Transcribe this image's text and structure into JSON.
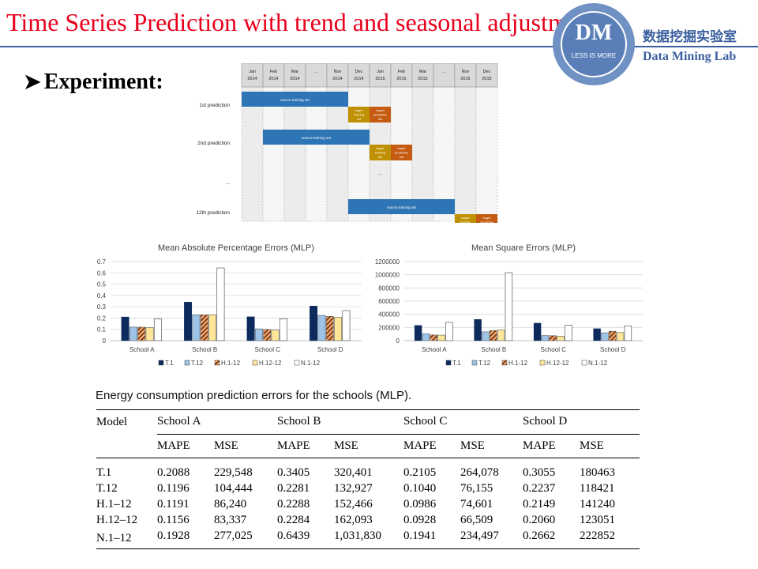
{
  "slide": {
    "title": "Time Series Prediction with trend and seasonal adjustment",
    "bullet": "Experiment:",
    "lab_cn": "数据挖掘实验室",
    "lab_en": "Data Mining Lab",
    "logo_text": "DM",
    "logo_sub": "LESS IS MORE",
    "colors": {
      "title": "#e8001c",
      "accent": "#3b5fa0"
    }
  },
  "timeline": {
    "months": [
      {
        "m": "Jan",
        "y": "2014"
      },
      {
        "m": "Feb",
        "y": "2014"
      },
      {
        "m": "Mar",
        "y": "2014"
      },
      {
        "m": "...",
        "y": ""
      },
      {
        "m": "Nov",
        "y": "2014"
      },
      {
        "m": "Dec",
        "y": "2014"
      },
      {
        "m": "Jan",
        "y": "2015"
      },
      {
        "m": "Feb",
        "y": "2015"
      },
      {
        "m": "Mar",
        "y": "2015"
      },
      {
        "m": "...",
        "y": ""
      },
      {
        "m": "Nov",
        "y": "2015"
      },
      {
        "m": "Dec",
        "y": "2015"
      }
    ],
    "rows": [
      {
        "label": "1st prediction",
        "train_start": 0,
        "train_end": 5,
        "target_training": 5,
        "target_predictive": 6
      },
      {
        "label": "2nd prediction",
        "train_start": 1,
        "train_end": 6,
        "target_training": 6,
        "target_predictive": 7
      },
      {
        "label": "...",
        "ellipsis": true
      },
      {
        "label": "12th prediction",
        "train_start": 5,
        "train_end": 10,
        "target_training": 10,
        "target_predictive": 11
      }
    ],
    "train_label": "source training set",
    "target_training_label": [
      "target",
      "training",
      "set"
    ],
    "target_predictive_label": [
      "target",
      "predictive",
      "set"
    ],
    "colors": {
      "train": "#2e75b6",
      "target_training": "#bf9000",
      "target_predictive": "#c55a11"
    }
  },
  "chart_data": [
    {
      "type": "bar",
      "title": "Mean Absolute Percentage Errors (MLP)",
      "categories": [
        "School A",
        "School B",
        "School C",
        "School D"
      ],
      "series": [
        {
          "name": "T.1",
          "values": [
            0.2088,
            0.3405,
            0.2105,
            0.3055
          ]
        },
        {
          "name": "T.12",
          "values": [
            0.1196,
            0.2281,
            0.104,
            0.2237
          ]
        },
        {
          "name": "H.1-12",
          "values": [
            0.1191,
            0.2288,
            0.0986,
            0.2149
          ]
        },
        {
          "name": "H.12-12",
          "values": [
            0.1156,
            0.2284,
            0.0928,
            0.206
          ]
        },
        {
          "name": "N.1-12",
          "values": [
            0.1928,
            0.6439,
            0.1941,
            0.2662
          ]
        }
      ],
      "ylim": [
        0,
        0.7
      ],
      "yticks": [
        "0",
        "0.1",
        "0.2",
        "0.3",
        "0.4",
        "0.5",
        "0.6",
        "0.7"
      ],
      "ytick_values": [
        0,
        0.1,
        0.2,
        0.3,
        0.4,
        0.5,
        0.6,
        0.7
      ],
      "legend": "bottom"
    },
    {
      "type": "bar",
      "title": "Mean Square Errors (MLP)",
      "categories": [
        "School A",
        "School B",
        "School C",
        "School D"
      ],
      "series": [
        {
          "name": "T.1",
          "values": [
            229548,
            320401,
            264078,
            180463
          ]
        },
        {
          "name": "T.12",
          "values": [
            104444,
            132927,
            76155,
            118421
          ]
        },
        {
          "name": "H.1-12",
          "values": [
            86240,
            152466,
            74601,
            141240
          ]
        },
        {
          "name": "H.12-12",
          "values": [
            83337,
            162093,
            66509,
            123051
          ]
        },
        {
          "name": "N.1-12",
          "values": [
            277025,
            1031830,
            234497,
            222852
          ]
        }
      ],
      "ylim": [
        0,
        1200000
      ],
      "yticks": [
        "0",
        "200000",
        "400000",
        "600000",
        "800000",
        "1000000",
        "1200000"
      ],
      "ytick_values": [
        0,
        200000,
        400000,
        600000,
        800000,
        1000000,
        1200000
      ],
      "legend": "bottom"
    }
  ],
  "series_styles": [
    {
      "fill": "#0d2a5c",
      "pattern": "none"
    },
    {
      "fill": "#9dc3e6",
      "pattern": "none"
    },
    {
      "fill": "#c55a11",
      "pattern": "diag"
    },
    {
      "fill": "#ffe699",
      "pattern": "none"
    },
    {
      "fill": "#ffffff",
      "pattern": "none"
    }
  ],
  "table": {
    "caption": "Energy consumption prediction errors for the schools (MLP).",
    "model_header": "Model",
    "schools": [
      "School A",
      "School B",
      "School C",
      "School D"
    ],
    "sub_headers": [
      "MAPE",
      "MSE"
    ],
    "rows": [
      {
        "model": "T.1",
        "vals": [
          "0.2088",
          "229,548",
          "0.3405",
          "320,401",
          "0.2105",
          "264,078",
          "0.3055",
          "180463"
        ]
      },
      {
        "model": "T.12",
        "vals": [
          "0.1196",
          "104,444",
          "0.2281",
          "132,927",
          "0.1040",
          "76,155",
          "0.2237",
          "118421"
        ]
      },
      {
        "model": "H.1–12",
        "vals": [
          "0.1191",
          "86,240",
          "0.2288",
          "152,466",
          "0.0986",
          "74,601",
          "0.2149",
          "141240"
        ]
      },
      {
        "model": "H.12–12",
        "vals": [
          "0.1156",
          "83,337",
          "0.2284",
          "162,093",
          "0.0928",
          "66,509",
          "0.2060",
          "123051"
        ]
      },
      {
        "model": "N.1–12",
        "vals": [
          "0.1928",
          "277,025",
          "0.6439",
          "1,031,830",
          "0.1941",
          "234,497",
          "0.2662",
          "222852"
        ]
      }
    ]
  }
}
